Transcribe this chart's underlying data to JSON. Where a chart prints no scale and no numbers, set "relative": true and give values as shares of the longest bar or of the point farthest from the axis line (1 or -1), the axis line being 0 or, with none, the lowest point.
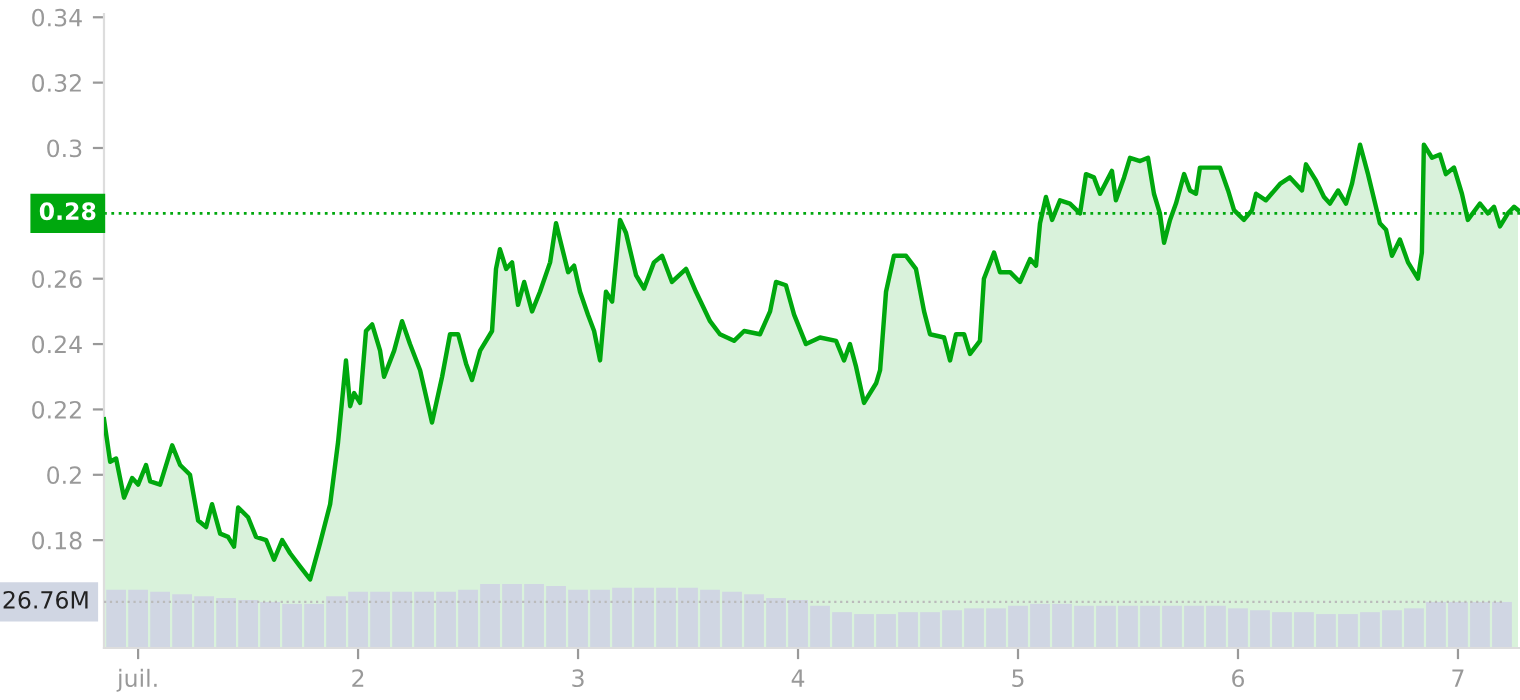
{
  "chart_data": [
    {
      "type": "area",
      "tick_labels": "y",
      "grid": false,
      "marker": "none",
      "line_style": "solid",
      "xlim": [
        0.845,
        7.282
      ],
      "ylim": [
        0.147,
        0.341
      ],
      "yticks": [
        0.18,
        0.2,
        0.22,
        0.24,
        0.26,
        0.3,
        0.32,
        0.34
      ],
      "ref_lines": [
        {
          "axis": "y",
          "value": 0.28,
          "label": "0.28",
          "color": "#00a80e",
          "line_style": "dotted"
        }
      ],
      "series": [
        {
          "color": "#00a80e",
          "x": [
            0.845,
            0.873,
            0.9,
            0.936,
            0.973,
            1.0,
            1.036,
            1.055,
            1.1,
            1.155,
            1.191,
            1.236,
            1.273,
            1.309,
            1.336,
            1.373,
            1.409,
            1.436,
            1.455,
            1.5,
            1.536,
            1.582,
            1.618,
            1.655,
            1.691,
            1.736,
            1.782,
            1.827,
            1.873,
            1.909,
            1.945,
            1.964,
            1.982,
            2.009,
            2.036,
            2.064,
            2.1,
            2.118,
            2.164,
            2.2,
            2.236,
            2.282,
            2.309,
            2.336,
            2.382,
            2.418,
            2.455,
            2.491,
            2.518,
            2.555,
            2.609,
            2.627,
            2.645,
            2.673,
            2.7,
            2.727,
            2.755,
            2.791,
            2.827,
            2.873,
            2.9,
            2.918,
            2.955,
            2.982,
            3.009,
            3.045,
            3.073,
            3.1,
            3.127,
            3.155,
            3.191,
            3.218,
            3.264,
            3.3,
            3.345,
            3.382,
            3.427,
            3.491,
            3.536,
            3.6,
            3.645,
            3.709,
            3.755,
            3.827,
            3.873,
            3.9,
            3.945,
            3.982,
            4.036,
            4.1,
            4.173,
            4.209,
            4.236,
            4.264,
            4.3,
            4.355,
            4.373,
            4.4,
            4.436,
            4.491,
            4.536,
            4.573,
            4.6,
            4.664,
            4.691,
            4.718,
            4.755,
            4.782,
            4.827,
            4.845,
            4.891,
            4.918,
            4.964,
            5.009,
            5.055,
            5.082,
            5.1,
            5.127,
            5.155,
            5.191,
            5.236,
            5.282,
            5.309,
            5.345,
            5.373,
            5.427,
            5.445,
            5.482,
            5.509,
            5.555,
            5.591,
            5.618,
            5.645,
            5.664,
            5.691,
            5.718,
            5.755,
            5.782,
            5.809,
            5.827,
            5.882,
            5.918,
            5.955,
            5.982,
            6.027,
            6.064,
            6.082,
            6.127,
            6.191,
            6.236,
            6.291,
            6.309,
            6.355,
            6.391,
            6.418,
            6.455,
            6.491,
            6.518,
            6.555,
            6.591,
            6.627,
            6.645,
            6.673,
            6.7,
            6.736,
            6.773,
            6.818,
            6.836,
            6.845,
            6.882,
            6.918,
            6.945,
            6.982,
            7.018,
            7.045,
            7.1,
            7.136,
            7.164,
            7.191,
            7.227,
            7.255,
            7.273
          ],
          "values": [
            0.217,
            0.204,
            0.205,
            0.193,
            0.199,
            0.197,
            0.203,
            0.198,
            0.197,
            0.209,
            0.203,
            0.2,
            0.186,
            0.184,
            0.191,
            0.182,
            0.181,
            0.178,
            0.19,
            0.187,
            0.181,
            0.18,
            0.174,
            0.18,
            0.176,
            0.172,
            0.168,
            0.179,
            0.191,
            0.21,
            0.235,
            0.221,
            0.225,
            0.222,
            0.244,
            0.246,
            0.238,
            0.23,
            0.238,
            0.247,
            0.24,
            0.232,
            0.224,
            0.216,
            0.23,
            0.243,
            0.243,
            0.234,
            0.229,
            0.238,
            0.244,
            0.263,
            0.269,
            0.263,
            0.265,
            0.252,
            0.259,
            0.25,
            0.256,
            0.265,
            0.277,
            0.272,
            0.262,
            0.264,
            0.256,
            0.249,
            0.244,
            0.235,
            0.256,
            0.253,
            0.278,
            0.274,
            0.261,
            0.257,
            0.265,
            0.267,
            0.259,
            0.263,
            0.256,
            0.247,
            0.243,
            0.241,
            0.244,
            0.243,
            0.25,
            0.259,
            0.258,
            0.249,
            0.24,
            0.242,
            0.241,
            0.235,
            0.24,
            0.233,
            0.222,
            0.228,
            0.232,
            0.256,
            0.267,
            0.267,
            0.263,
            0.25,
            0.243,
            0.242,
            0.235,
            0.243,
            0.243,
            0.237,
            0.241,
            0.26,
            0.268,
            0.262,
            0.262,
            0.259,
            0.266,
            0.264,
            0.277,
            0.285,
            0.278,
            0.284,
            0.283,
            0.28,
            0.292,
            0.291,
            0.286,
            0.293,
            0.284,
            0.291,
            0.297,
            0.296,
            0.297,
            0.286,
            0.28,
            0.271,
            0.278,
            0.283,
            0.292,
            0.287,
            0.286,
            0.294,
            0.294,
            0.294,
            0.287,
            0.281,
            0.278,
            0.281,
            0.286,
            0.284,
            0.289,
            0.291,
            0.287,
            0.295,
            0.29,
            0.285,
            0.283,
            0.287,
            0.283,
            0.289,
            0.301,
            0.292,
            0.282,
            0.277,
            0.275,
            0.267,
            0.272,
            0.265,
            0.26,
            0.268,
            0.301,
            0.297,
            0.298,
            0.292,
            0.294,
            0.286,
            0.278,
            0.283,
            0.28,
            0.282,
            0.276,
            0.28,
            0.282,
            0.281
          ]
        }
      ]
    },
    {
      "type": "bar",
      "relative": true,
      "tick_labels": "x",
      "grid": false,
      "xlim": [
        0.845,
        7.282
      ],
      "xticks": [
        {
          "value": 1,
          "label": "juil."
        },
        2,
        3,
        4,
        5,
        6,
        7
      ],
      "annotations": [
        {
          "text": "26.76M",
          "x": 7.2,
          "y": 0.72
        }
      ],
      "series": [
        {
          "color": "#d0d6e3",
          "x": [
            0.9,
            1.0,
            1.1,
            1.2,
            1.3,
            1.4,
            1.5,
            1.6,
            1.7,
            1.8,
            1.9,
            2.0,
            2.1,
            2.2,
            2.3,
            2.4,
            2.5,
            2.6,
            2.7,
            2.8,
            2.9,
            3.0,
            3.1,
            3.2,
            3.3,
            3.4,
            3.5,
            3.6,
            3.7,
            3.8,
            3.9,
            4.0,
            4.1,
            4.2,
            4.3,
            4.4,
            4.5,
            4.6,
            4.7,
            4.8,
            4.9,
            5.0,
            5.1,
            5.2,
            5.3,
            5.4,
            5.5,
            5.6,
            5.7,
            5.8,
            5.9,
            6.0,
            6.1,
            6.2,
            6.3,
            6.4,
            6.5,
            6.6,
            6.7,
            6.8,
            6.9,
            7.0,
            7.1,
            7.2
          ],
          "values": [
            0.91,
            0.91,
            0.88,
            0.84,
            0.81,
            0.78,
            0.75,
            0.72,
            0.69,
            0.69,
            0.81,
            0.88,
            0.88,
            0.88,
            0.88,
            0.88,
            0.91,
            1.0,
            1.0,
            1.0,
            0.97,
            0.91,
            0.91,
            0.94,
            0.94,
            0.94,
            0.94,
            0.91,
            0.88,
            0.84,
            0.78,
            0.75,
            0.66,
            0.56,
            0.53,
            0.53,
            0.56,
            0.56,
            0.59,
            0.62,
            0.62,
            0.66,
            0.69,
            0.69,
            0.66,
            0.66,
            0.66,
            0.66,
            0.66,
            0.66,
            0.66,
            0.62,
            0.59,
            0.56,
            0.56,
            0.53,
            0.53,
            0.56,
            0.59,
            0.62,
            0.72,
            0.72,
            0.72,
            0.72
          ]
        }
      ]
    }
  ]
}
